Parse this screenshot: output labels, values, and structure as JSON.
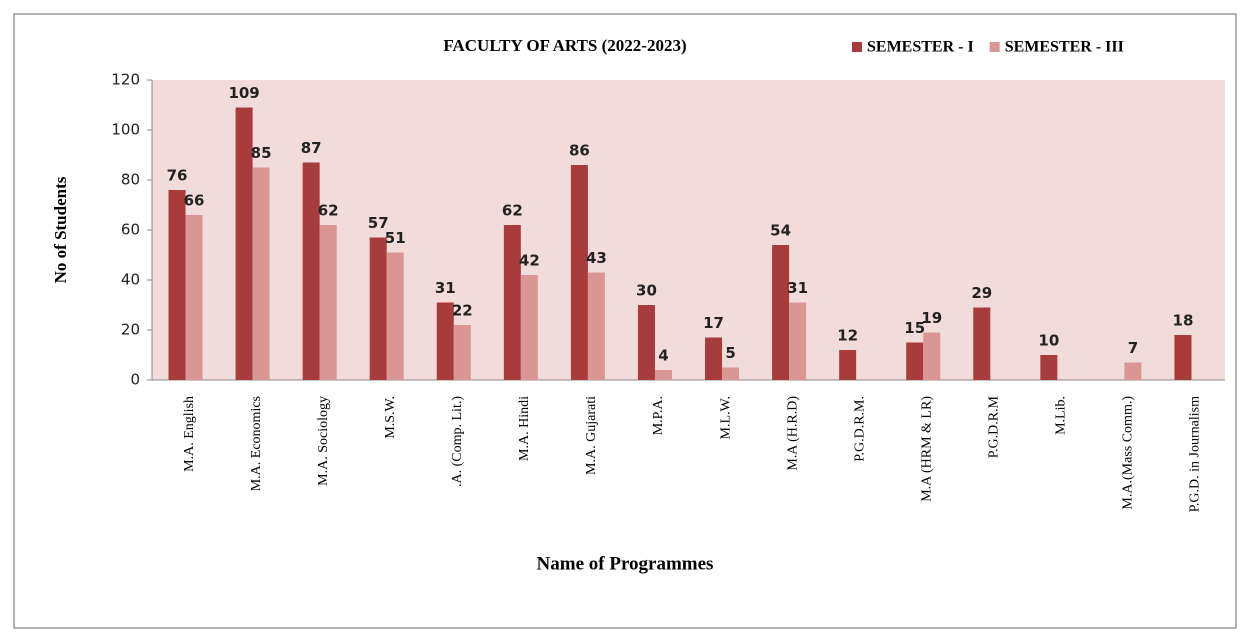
{
  "chart_data": {
    "type": "bar",
    "title": "FACULTY OF ARTS (2022-2023)",
    "x_label": "Name of Programmes",
    "y_label": "No of Students",
    "categories": [
      "M.A. English",
      "M.A. Economics",
      "M.A. Sociology",
      "M.S.W.",
      ".A. (Comp. Lit.)",
      "M.A. Hindi",
      "M.A. Gujarati",
      "M.P.A.",
      "M.L.W.",
      "M.A (H.R.D)",
      "P.G.D.R.M.",
      "M.A (HRM & LR)",
      "P.G.D.R.M",
      "M.Lib.",
      "M.A.(Mass Comm.)",
      "P.G.D. in Journalism"
    ],
    "series": [
      {
        "name": "SEMESTER - I",
        "color": "#a83c3c",
        "values": [
          76,
          109,
          87,
          57,
          31,
          62,
          86,
          30,
          17,
          54,
          12,
          15,
          29,
          10,
          null,
          18
        ]
      },
      {
        "name": "SEMESTER - III",
        "color": "#d99694",
        "values": [
          66,
          85,
          62,
          51,
          22,
          42,
          43,
          4,
          5,
          31,
          null,
          19,
          null,
          null,
          7,
          null
        ]
      }
    ],
    "ylim": [
      0,
      120
    ],
    "yticks": [
      0,
      20,
      40,
      60,
      80,
      100,
      120
    ]
  }
}
